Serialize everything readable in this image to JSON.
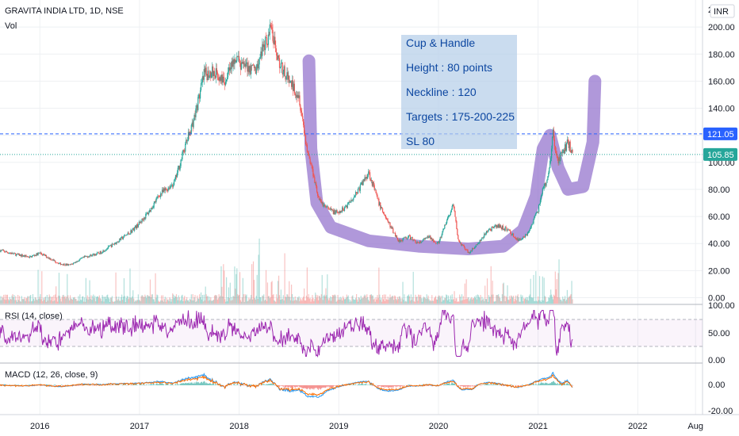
{
  "header": {
    "symbol": "GRAVITA INDIA LTD, 1D, NSE",
    "volume_label": "Vol",
    "currency": "INR"
  },
  "annotation": {
    "lines": [
      "Cup & Handle",
      "Height : 80 points",
      "Neckline : 120",
      "Targets : 175-200-225",
      "SL 80"
    ]
  },
  "price_badges": {
    "neckline": {
      "value": 121.05,
      "text": "121.05",
      "color": "#2962ff"
    },
    "last": {
      "value": 105.85,
      "text": "105.85",
      "color": "#26a69a"
    }
  },
  "rsi": {
    "label": "RSI (14, close)",
    "ticks": [
      "100.00",
      "50.00",
      "0.00"
    ],
    "color": "#9c27b0"
  },
  "macd": {
    "label": "MACD (12, 26, close, 9)",
    "ticks": [
      "0.00",
      "-20.00"
    ],
    "macd_color": "#2196f3",
    "signal_color": "#ff6d00"
  },
  "colors": {
    "up": "#26a69a",
    "down": "#ef5350",
    "cup_marker": "#9575cd",
    "grid": "#eef0f3"
  },
  "chart_data": {
    "type": "line",
    "title": "GRAVITA INDIA LTD, 1D, NSE",
    "x_ticks": [
      "2016",
      "2017",
      "2018",
      "2019",
      "2020",
      "2021",
      "2022",
      "Aug"
    ],
    "y_ticks": [
      "0.00",
      "20.00",
      "40.00",
      "60.00",
      "80.00",
      "100.00",
      "120.00",
      "140.00",
      "160.00",
      "180.00",
      "200.00"
    ],
    "y_top_label": "2",
    "ylim": [
      -5,
      220
    ],
    "xlim": [
      2015.6,
      2022.65
    ],
    "series": [
      {
        "x": [
          2015.6,
          2015.75,
          2015.9,
          2016.0,
          2016.1,
          2016.2,
          2016.3,
          2016.45,
          2016.6,
          2016.75,
          2016.9,
          2017.0,
          2017.1,
          2017.2,
          2017.35,
          2017.45,
          2017.55,
          2017.65,
          2017.75,
          2017.85,
          2017.95,
          2018.05,
          2018.15,
          2018.25,
          2018.32,
          2018.4,
          2018.5,
          2018.6,
          2018.68,
          2018.75,
          2018.8,
          2018.9,
          2019.0,
          2019.1,
          2019.2,
          2019.3,
          2019.4,
          2019.5,
          2019.6,
          2019.7,
          2019.8,
          2019.9,
          2020.0,
          2020.1,
          2020.15,
          2020.2,
          2020.3,
          2020.4,
          2020.5,
          2020.6,
          2020.7,
          2020.8,
          2020.9,
          2021.0,
          2021.05,
          2021.1,
          2021.15,
          2021.2,
          2021.25,
          2021.3,
          2021.35
        ],
        "values": [
          35,
          32,
          30,
          33,
          29,
          25,
          24,
          30,
          33,
          40,
          48,
          55,
          64,
          76,
          85,
          110,
          133,
          165,
          167,
          160,
          175,
          172,
          168,
          185,
          200,
          175,
          160,
          150,
          110,
          90,
          72,
          65,
          62,
          70,
          80,
          93,
          70,
          55,
          42,
          45,
          40,
          45,
          40,
          60,
          68,
          42,
          33,
          40,
          50,
          53,
          50,
          42,
          48,
          65,
          80,
          88,
          121,
          100,
          108,
          115,
          106
        ]
      }
    ]
  }
}
